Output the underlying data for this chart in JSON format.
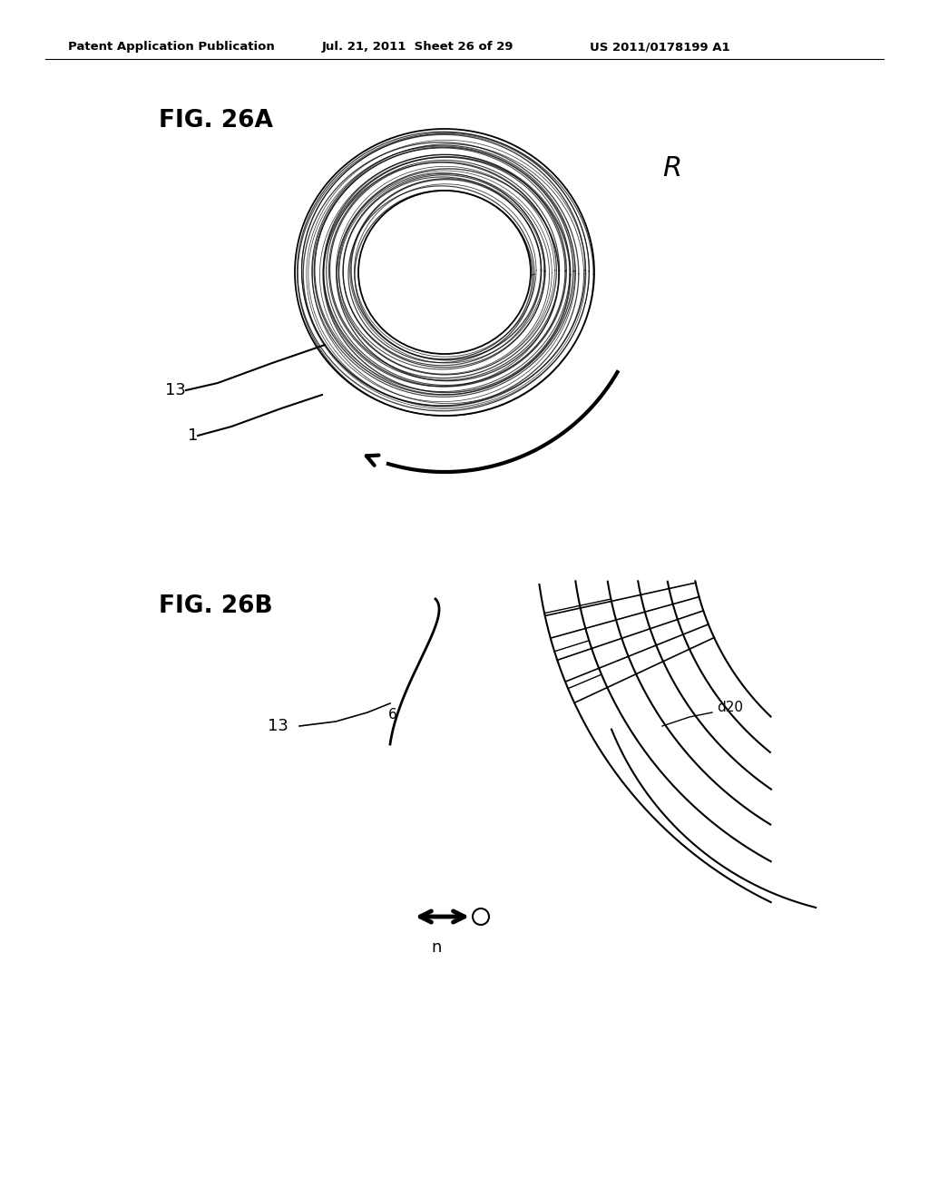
{
  "bg_color": "#ffffff",
  "header_left": "Patent Application Publication",
  "header_mid": "Jul. 21, 2011  Sheet 26 of 29",
  "header_right": "US 2011/0178199 A1",
  "fig26a_label": "FIG. 26A",
  "fig26b_label": "FIG. 26B",
  "label_13a": "13",
  "label_1": "1",
  "label_R": "R",
  "label_13b": "13",
  "label_6": "6",
  "label_d20": "d20",
  "label_n": "n",
  "text_color": "#000000"
}
